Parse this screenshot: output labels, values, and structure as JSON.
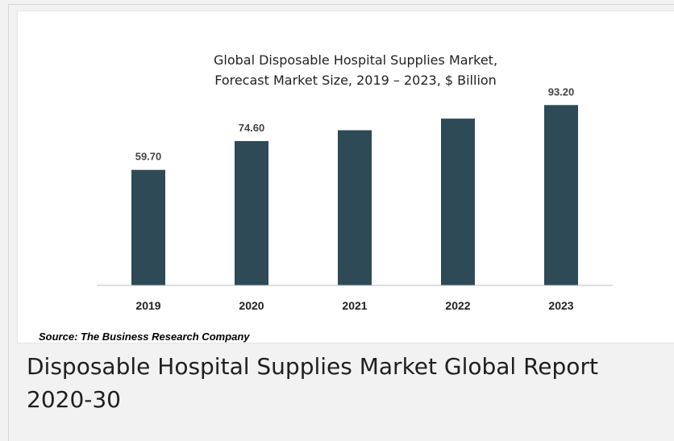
{
  "colors": {
    "bar": "#2e4a57",
    "axis": "#bfbfbf"
  },
  "chart_data": {
    "type": "bar",
    "title_lines": [
      "Global Disposable Hospital Supplies Market,",
      "Forecast Market Size, 2019 – 2023, $ Billion"
    ],
    "categories": [
      "2019",
      "2020",
      "2021",
      "2022",
      "2023"
    ],
    "values": [
      59.7,
      74.6,
      80.2,
      86.2,
      93.2
    ],
    "data_labels": [
      "59.70",
      "74.60",
      "",
      "",
      "93.20"
    ],
    "ylim": [
      0,
      100
    ],
    "grid": false,
    "legend": "none"
  },
  "source": "Source: The Business Research Company",
  "report_title": "Disposable Hospital Supplies Market Global Report 2020-30"
}
